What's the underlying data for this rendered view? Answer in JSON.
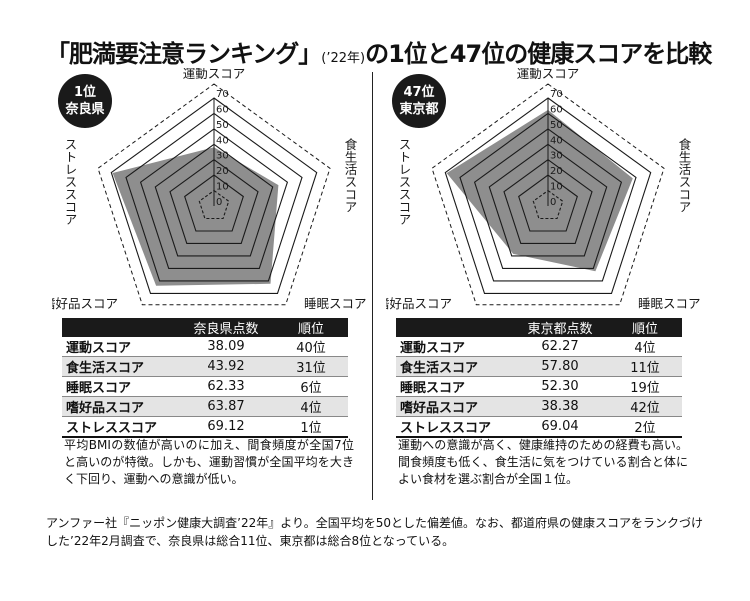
{
  "title": {
    "prefix": "「肥満要注意ランキング」",
    "year_note": "(’22年)",
    "suffix": "の1位と47位の健康スコアを比較"
  },
  "axis_labels": [
    "運動スコア",
    "食生活スコア",
    "睡眠スコア",
    "嗜好品スコア",
    "ストレススコア"
  ],
  "ring_ticks": [
    "0",
    "10",
    "20",
    "30",
    "40",
    "50",
    "60",
    "70"
  ],
  "colors": {
    "fill": "#8e8e8e",
    "grid": "#1a1a1a",
    "header": "#1a1a1a",
    "stripe": "#e4e4e4"
  },
  "panels": [
    {
      "badge_rank": "1位",
      "badge_name": "奈良県",
      "table_headers": [
        "",
        "奈良県点数",
        "順位"
      ],
      "rows": [
        {
          "name": "運動スコア",
          "score": "38.09",
          "rank": "40位"
        },
        {
          "name": "食生活スコア",
          "score": "43.92",
          "rank": "31位"
        },
        {
          "name": "睡眠スコア",
          "score": "62.33",
          "rank": "6位"
        },
        {
          "name": "嗜好品スコア",
          "score": "63.87",
          "rank": "4位"
        },
        {
          "name": "ストレススコア",
          "score": "69.12",
          "rank": "1位"
        }
      ],
      "description": "平均BMIの数値が高いのに加え、間食頻度が全国7位と高いのが特徴。しかも、運動習慣が全国平均を大きく下回り、運動への意識が低い。"
    },
    {
      "badge_rank": "47位",
      "badge_name": "東京都",
      "table_headers": [
        "",
        "東京都点数",
        "順位"
      ],
      "rows": [
        {
          "name": "運動スコア",
          "score": "62.27",
          "rank": "4位"
        },
        {
          "name": "食生活スコア",
          "score": "57.80",
          "rank": "11位"
        },
        {
          "name": "睡眠スコア",
          "score": "52.30",
          "rank": "19位"
        },
        {
          "name": "嗜好品スコア",
          "score": "38.38",
          "rank": "42位"
        },
        {
          "name": "ストレススコア",
          "score": "69.04",
          "rank": "2位"
        }
      ],
      "description": "運動への意識が高く、健康維持のための経費も高い。間食頻度も低く、食生活に気をつけている割合と体によい食材を選ぶ割合が全国１位。"
    }
  ],
  "chart_data": [
    {
      "type": "radar",
      "title": "奈良県",
      "categories": [
        "運動スコア",
        "食生活スコア",
        "睡眠スコア",
        "嗜好品スコア",
        "ストレススコア"
      ],
      "values": [
        38.09,
        43.92,
        62.33,
        63.87,
        69.12
      ],
      "ylim": [
        0,
        70
      ]
    },
    {
      "type": "radar",
      "title": "東京都",
      "categories": [
        "運動スコア",
        "食生活スコア",
        "睡眠スコア",
        "嗜好品スコア",
        "ストレススコア"
      ],
      "values": [
        62.27,
        57.8,
        52.3,
        38.38,
        69.04
      ],
      "ylim": [
        0,
        70
      ]
    }
  ],
  "footnote": "アンファー社『ニッポン健康大調査’22年』より。全国平均を50とした偏差値。なお、都道府県の健康スコアをランクづけした’22年2月調査で、奈良県は総合11位、東京都は総合8位となっている。"
}
